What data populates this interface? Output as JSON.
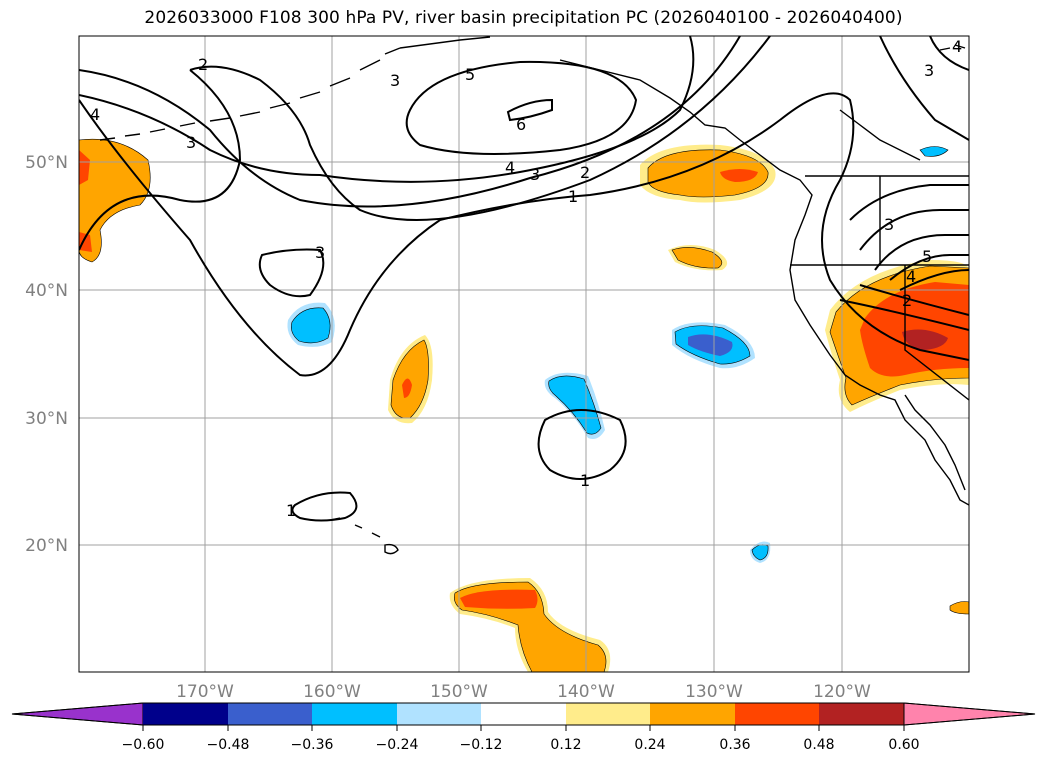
{
  "title": "2026033000 F108 300 hPa PV, river basin precipitation PC (2026040100 - 2026040400)",
  "lat_labels": [
    "50°N",
    "40°N",
    "30°N",
    "20°N"
  ],
  "lon_labels": [
    "170°W",
    "160°W",
    "150°W",
    "140°W",
    "130°W",
    "120°W"
  ],
  "colorbar": {
    "tick_labels": [
      "−0.60",
      "−0.48",
      "−0.36",
      "−0.24",
      "−0.12",
      "0.12",
      "0.24",
      "0.36",
      "0.48",
      "0.60"
    ],
    "colors": [
      "#9932cc",
      "#00008b",
      "#3a5fcd",
      "#00bfff",
      "#b0e2ff",
      "#ffffff",
      "#ffec8b",
      "#ffa500",
      "#ff4500",
      "#b22222",
      "#ff83ac"
    ]
  },
  "contour_labels": [
    "2",
    "5",
    "6",
    "4",
    "3",
    "2",
    "1",
    "3",
    "3",
    "4",
    "3",
    "1",
    "1",
    "3",
    "5",
    "4",
    "2",
    "3",
    "4"
  ],
  "colors": {
    "land": "#000000",
    "grid": "#a0a0a0",
    "contour": "#000000"
  }
}
